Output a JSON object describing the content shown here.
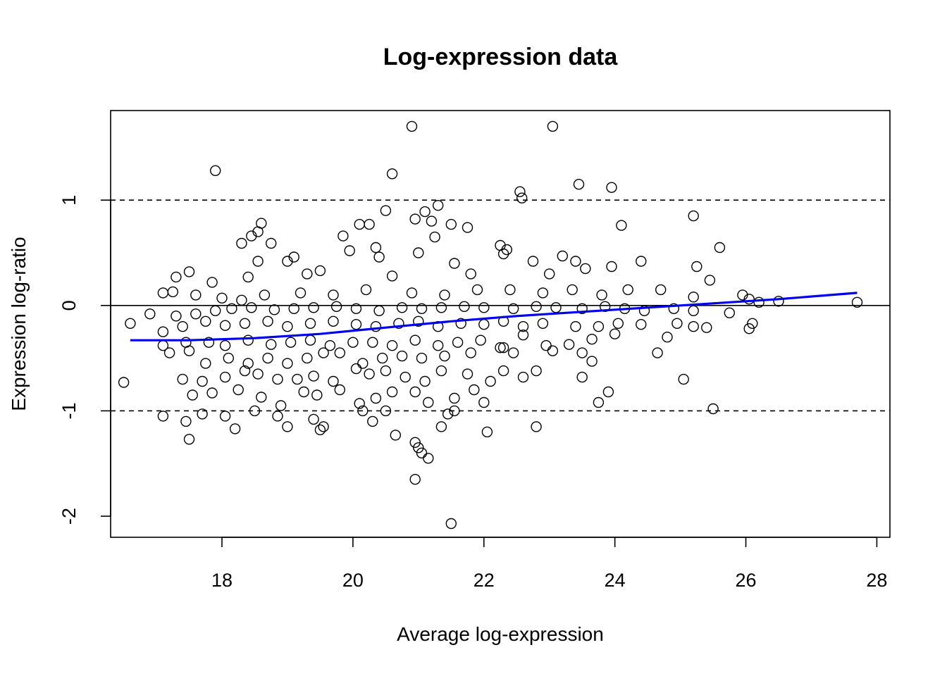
{
  "chart_data": {
    "type": "scatter",
    "title": "Log-expression data",
    "xlabel": "Average log-expression",
    "ylabel": "Expression log-ratio",
    "xlim": [
      16.3,
      28.2
    ],
    "ylim": [
      -2.2,
      1.85
    ],
    "xticks": [
      18,
      20,
      22,
      24,
      26,
      28
    ],
    "yticks": [
      -2,
      -1,
      0,
      1
    ],
    "x_tick_labels": [
      "18",
      "20",
      "22",
      "24",
      "26",
      "28"
    ],
    "y_tick_labels": [
      "-2",
      "-1",
      "0",
      "1"
    ],
    "grid": false,
    "reference_lines": [
      {
        "y": 1,
        "style": "dashed",
        "color": "#000000"
      },
      {
        "y": 0,
        "style": "solid",
        "color": "#000000"
      },
      {
        "y": -1,
        "style": "dashed",
        "color": "#000000"
      }
    ],
    "trend": {
      "color": "#0000ee",
      "x": [
        16.6,
        17.5,
        18.5,
        19.5,
        20.5,
        21.5,
        22.5,
        23.5,
        24.5,
        25.5,
        26.5,
        27.7
      ],
      "y": [
        -0.33,
        -0.33,
        -0.31,
        -0.27,
        -0.21,
        -0.15,
        -0.1,
        -0.06,
        -0.02,
        0.02,
        0.06,
        0.12
      ]
    },
    "series": [
      {
        "marker": "open-circle",
        "color": "#000000",
        "points": [
          [
            20.9,
            1.7
          ],
          [
            23.05,
            1.7
          ],
          [
            17.9,
            1.28
          ],
          [
            20.6,
            1.25
          ],
          [
            23.45,
            1.15
          ],
          [
            23.95,
            1.12
          ],
          [
            22.55,
            1.08
          ],
          [
            22.58,
            1.02
          ],
          [
            21.3,
            0.95
          ],
          [
            20.5,
            0.9
          ],
          [
            21.1,
            0.89
          ],
          [
            25.2,
            0.85
          ],
          [
            21.2,
            0.8
          ],
          [
            20.95,
            0.82
          ],
          [
            18.6,
            0.78
          ],
          [
            20.1,
            0.77
          ],
          [
            20.25,
            0.77
          ],
          [
            21.5,
            0.77
          ],
          [
            21.75,
            0.74
          ],
          [
            24.1,
            0.76
          ],
          [
            18.55,
            0.7
          ],
          [
            18.45,
            0.66
          ],
          [
            21.25,
            0.65
          ],
          [
            19.85,
            0.66
          ],
          [
            18.3,
            0.59
          ],
          [
            18.75,
            0.59
          ],
          [
            22.25,
            0.57
          ],
          [
            25.6,
            0.55
          ],
          [
            20.35,
            0.55
          ],
          [
            20.4,
            0.46
          ],
          [
            19.1,
            0.46
          ],
          [
            22.3,
            0.49
          ],
          [
            19.0,
            0.42
          ],
          [
            21.0,
            0.5
          ],
          [
            23.2,
            0.47
          ],
          [
            22.35,
            0.53
          ],
          [
            19.95,
            0.52
          ],
          [
            18.55,
            0.42
          ],
          [
            21.55,
            0.4
          ],
          [
            23.4,
            0.42
          ],
          [
            17.3,
            0.27
          ],
          [
            17.5,
            0.32
          ],
          [
            17.85,
            0.22
          ],
          [
            18.4,
            0.27
          ],
          [
            19.3,
            0.3
          ],
          [
            19.5,
            0.33
          ],
          [
            20.6,
            0.28
          ],
          [
            21.8,
            0.3
          ],
          [
            22.75,
            0.42
          ],
          [
            23.0,
            0.3
          ],
          [
            23.55,
            0.35
          ],
          [
            23.95,
            0.37
          ],
          [
            24.4,
            0.42
          ],
          [
            25.25,
            0.37
          ],
          [
            25.45,
            0.24
          ],
          [
            17.1,
            0.12
          ],
          [
            17.25,
            0.13
          ],
          [
            17.6,
            0.1
          ],
          [
            18.0,
            0.07
          ],
          [
            18.3,
            0.05
          ],
          [
            18.65,
            0.1
          ],
          [
            19.2,
            0.12
          ],
          [
            19.7,
            0.1
          ],
          [
            20.2,
            0.15
          ],
          [
            20.9,
            0.12
          ],
          [
            21.4,
            0.1
          ],
          [
            21.9,
            0.15
          ],
          [
            22.4,
            0.15
          ],
          [
            22.9,
            0.12
          ],
          [
            23.35,
            0.15
          ],
          [
            23.8,
            0.1
          ],
          [
            24.2,
            0.15
          ],
          [
            24.7,
            0.15
          ],
          [
            25.2,
            0.08
          ],
          [
            25.95,
            0.1
          ],
          [
            26.05,
            0.06
          ],
          [
            26.5,
            0.04
          ],
          [
            27.7,
            0.03
          ],
          [
            26.2,
            0.03
          ],
          [
            16.9,
            -0.08
          ],
          [
            17.3,
            -0.1
          ],
          [
            17.6,
            -0.08
          ],
          [
            17.9,
            -0.05
          ],
          [
            18.15,
            -0.03
          ],
          [
            18.45,
            -0.02
          ],
          [
            18.8,
            -0.04
          ],
          [
            19.1,
            -0.03
          ],
          [
            19.4,
            -0.02
          ],
          [
            19.75,
            -0.01
          ],
          [
            20.05,
            -0.03
          ],
          [
            20.4,
            -0.05
          ],
          [
            20.75,
            -0.02
          ],
          [
            21.05,
            -0.03
          ],
          [
            21.35,
            -0.02
          ],
          [
            21.7,
            -0.01
          ],
          [
            22.0,
            -0.02
          ],
          [
            22.45,
            -0.03
          ],
          [
            22.8,
            -0.01
          ],
          [
            23.1,
            -0.02
          ],
          [
            23.5,
            -0.03
          ],
          [
            23.85,
            -0.01
          ],
          [
            24.15,
            -0.03
          ],
          [
            24.45,
            -0.05
          ],
          [
            24.9,
            -0.03
          ],
          [
            25.2,
            -0.05
          ],
          [
            25.75,
            -0.07
          ],
          [
            16.6,
            -0.17
          ],
          [
            17.1,
            -0.25
          ],
          [
            17.4,
            -0.2
          ],
          [
            17.75,
            -0.15
          ],
          [
            18.05,
            -0.19
          ],
          [
            18.35,
            -0.17
          ],
          [
            18.7,
            -0.15
          ],
          [
            19.0,
            -0.2
          ],
          [
            19.35,
            -0.17
          ],
          [
            19.7,
            -0.15
          ],
          [
            20.05,
            -0.18
          ],
          [
            20.35,
            -0.2
          ],
          [
            20.7,
            -0.17
          ],
          [
            21.0,
            -0.15
          ],
          [
            21.3,
            -0.2
          ],
          [
            21.65,
            -0.17
          ],
          [
            22.0,
            -0.18
          ],
          [
            22.3,
            -0.15
          ],
          [
            22.6,
            -0.2
          ],
          [
            22.9,
            -0.17
          ],
          [
            23.4,
            -0.2
          ],
          [
            23.75,
            -0.2
          ],
          [
            24.05,
            -0.17
          ],
          [
            24.4,
            -0.18
          ],
          [
            24.95,
            -0.17
          ],
          [
            25.2,
            -0.2
          ],
          [
            25.4,
            -0.21
          ],
          [
            26.05,
            -0.22
          ],
          [
            26.1,
            -0.17
          ],
          [
            17.1,
            -0.38
          ],
          [
            17.45,
            -0.35
          ],
          [
            17.8,
            -0.35
          ],
          [
            18.05,
            -0.38
          ],
          [
            18.4,
            -0.33
          ],
          [
            18.75,
            -0.37
          ],
          [
            19.05,
            -0.35
          ],
          [
            19.35,
            -0.33
          ],
          [
            19.65,
            -0.38
          ],
          [
            20.0,
            -0.35
          ],
          [
            20.3,
            -0.35
          ],
          [
            20.6,
            -0.38
          ],
          [
            20.95,
            -0.33
          ],
          [
            21.3,
            -0.38
          ],
          [
            21.6,
            -0.35
          ],
          [
            21.95,
            -0.33
          ],
          [
            22.3,
            -0.4
          ],
          [
            22.6,
            -0.28
          ],
          [
            22.95,
            -0.38
          ],
          [
            23.3,
            -0.37
          ],
          [
            23.65,
            -0.32
          ],
          [
            24.0,
            -0.27
          ],
          [
            24.8,
            -0.3
          ],
          [
            17.2,
            -0.45
          ],
          [
            17.5,
            -0.43
          ],
          [
            17.75,
            -0.55
          ],
          [
            18.1,
            -0.5
          ],
          [
            18.4,
            -0.55
          ],
          [
            18.7,
            -0.5
          ],
          [
            19.0,
            -0.55
          ],
          [
            19.3,
            -0.5
          ],
          [
            19.55,
            -0.45
          ],
          [
            19.8,
            -0.45
          ],
          [
            20.15,
            -0.55
          ],
          [
            20.45,
            -0.5
          ],
          [
            20.75,
            -0.48
          ],
          [
            21.05,
            -0.5
          ],
          [
            21.4,
            -0.48
          ],
          [
            21.8,
            -0.45
          ],
          [
            22.25,
            -0.4
          ],
          [
            22.45,
            -0.45
          ],
          [
            23.05,
            -0.43
          ],
          [
            23.5,
            -0.45
          ],
          [
            23.65,
            -0.53
          ],
          [
            24.65,
            -0.45
          ],
          [
            17.4,
            -0.7
          ],
          [
            17.7,
            -0.72
          ],
          [
            18.05,
            -0.68
          ],
          [
            18.35,
            -0.62
          ],
          [
            18.55,
            -0.65
          ],
          [
            18.85,
            -0.7
          ],
          [
            19.15,
            -0.7
          ],
          [
            19.4,
            -0.67
          ],
          [
            19.7,
            -0.72
          ],
          [
            20.05,
            -0.6
          ],
          [
            20.25,
            -0.65
          ],
          [
            20.5,
            -0.62
          ],
          [
            20.8,
            -0.68
          ],
          [
            21.1,
            -0.72
          ],
          [
            21.35,
            -0.62
          ],
          [
            21.75,
            -0.65
          ],
          [
            22.1,
            -0.72
          ],
          [
            22.3,
            -0.62
          ],
          [
            22.6,
            -0.68
          ],
          [
            22.8,
            -0.62
          ],
          [
            23.5,
            -0.68
          ],
          [
            16.5,
            -0.73
          ],
          [
            17.55,
            -0.85
          ],
          [
            17.85,
            -0.83
          ],
          [
            18.25,
            -0.8
          ],
          [
            18.6,
            -0.87
          ],
          [
            18.9,
            -0.95
          ],
          [
            19.25,
            -0.82
          ],
          [
            19.45,
            -0.85
          ],
          [
            19.8,
            -0.8
          ],
          [
            20.1,
            -0.93
          ],
          [
            20.35,
            -0.88
          ],
          [
            20.6,
            -0.82
          ],
          [
            20.95,
            -0.82
          ],
          [
            21.15,
            -0.92
          ],
          [
            21.55,
            -0.88
          ],
          [
            21.85,
            -0.8
          ],
          [
            22.0,
            -0.92
          ],
          [
            23.75,
            -0.92
          ],
          [
            23.9,
            -0.82
          ],
          [
            25.05,
            -0.7
          ],
          [
            25.5,
            -0.98
          ],
          [
            17.1,
            -1.05
          ],
          [
            17.7,
            -1.03
          ],
          [
            18.05,
            -1.05
          ],
          [
            18.5,
            -1.0
          ],
          [
            18.85,
            -1.05
          ],
          [
            19.0,
            -1.15
          ],
          [
            19.4,
            -1.08
          ],
          [
            19.55,
            -1.15
          ],
          [
            20.15,
            -1.0
          ],
          [
            20.3,
            -1.1
          ],
          [
            20.5,
            -1.0
          ],
          [
            21.45,
            -1.03
          ],
          [
            21.55,
            -1.0
          ],
          [
            21.35,
            -1.15
          ],
          [
            22.05,
            -1.2
          ],
          [
            22.8,
            -1.15
          ],
          [
            17.45,
            -1.1
          ],
          [
            17.5,
            -1.27
          ],
          [
            18.2,
            -1.17
          ],
          [
            19.5,
            -1.18
          ],
          [
            20.65,
            -1.23
          ],
          [
            20.95,
            -1.3
          ],
          [
            21.0,
            -1.35
          ],
          [
            21.05,
            -1.4
          ],
          [
            21.15,
            -1.45
          ],
          [
            20.95,
            -1.65
          ],
          [
            21.5,
            -2.07
          ]
        ]
      }
    ]
  }
}
